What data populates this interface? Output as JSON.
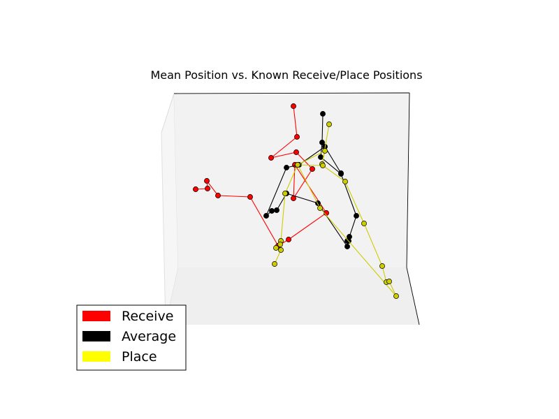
{
  "chart_data": {
    "type": "line",
    "title": "Mean Position vs. Known Receive/Place Positions",
    "legend_position": "lower-left",
    "grid": false,
    "series": [
      {
        "name": "Receive",
        "color": "#ff0000",
        "points": [
          [
            420,
            152
          ],
          [
            425,
            196
          ],
          [
            388,
            226
          ],
          [
            424,
            218
          ],
          [
            447,
            242
          ],
          [
            420,
            284
          ],
          [
            422,
            236
          ],
          [
            467,
            305
          ],
          [
            413,
            343
          ],
          [
            398,
            352
          ],
          [
            358,
            282
          ],
          [
            312,
            280
          ],
          [
            296,
            259
          ],
          [
            297,
            270
          ],
          [
            280,
            271
          ]
        ]
      },
      {
        "name": "Average",
        "color": "#000000",
        "points": [
          [
            462,
            163
          ],
          [
            461,
            204
          ],
          [
            459,
            225
          ],
          [
            488,
            249
          ],
          [
            510,
            309
          ],
          [
            500,
            339
          ],
          [
            497,
            345
          ],
          [
            499,
            345
          ],
          [
            497,
            353
          ],
          [
            455,
            291
          ],
          [
            410,
            277
          ],
          [
            396,
            301
          ],
          [
            389,
            302
          ],
          [
            381,
            309
          ],
          [
            410,
            240
          ],
          [
            428,
            236
          ],
          [
            465,
            210
          ],
          [
            488,
            248
          ]
        ]
      },
      {
        "name": "Place",
        "color": "#cccc00",
        "points": [
          [
            471,
            178
          ],
          [
            461,
            235
          ],
          [
            465,
            216
          ],
          [
            426,
            236
          ],
          [
            462,
            237
          ],
          [
            494,
            260
          ],
          [
            521,
            320
          ],
          [
            547,
            381
          ],
          [
            553,
            404
          ],
          [
            557,
            403
          ],
          [
            567,
            424
          ],
          [
            458,
            298
          ],
          [
            426,
            236
          ],
          [
            408,
            277
          ],
          [
            402,
            345
          ],
          [
            401,
            350
          ],
          [
            395,
            355
          ],
          [
            402,
            358
          ],
          [
            393,
            378
          ]
        ]
      }
    ]
  }
}
